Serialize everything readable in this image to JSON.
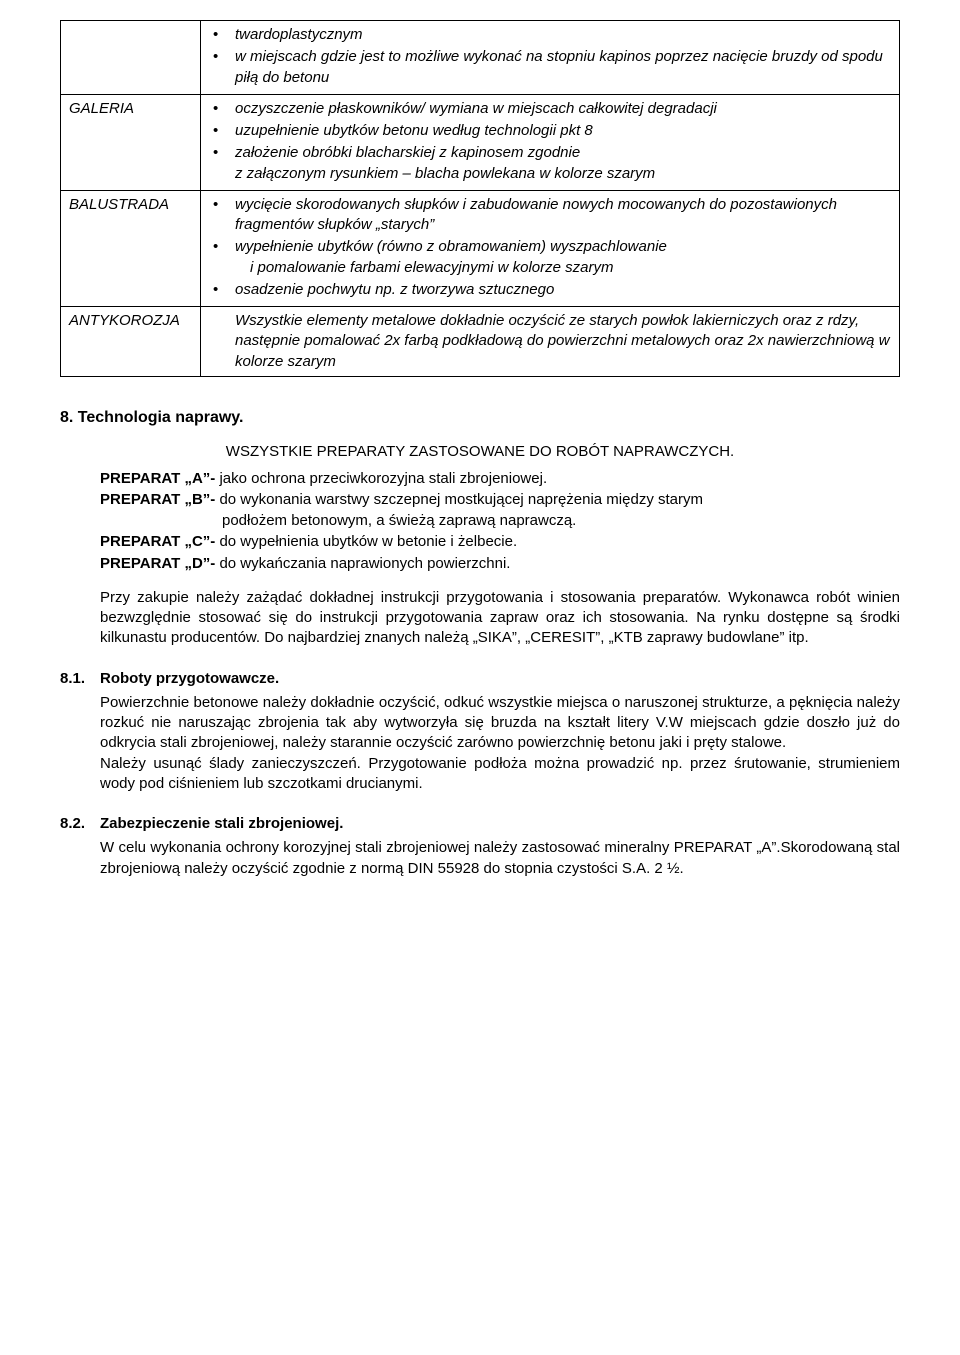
{
  "table": {
    "row0": {
      "bullets": [
        "twardoplastycznym",
        "w miejscach gdzie jest to możliwe wykonać na stopniu kapinos poprzez nacięcie bruzdy od spodu  piłą do betonu"
      ]
    },
    "row1": {
      "label": "GALERIA",
      "bullets": [
        "oczyszczenie płaskowników/ wymiana w miejscach całkowitej degradacji",
        "uzupełnienie ubytków betonu według technologii pkt 8",
        "założenie obróbki blacharskiej z kapinosem zgodnie",
        "z załączonym rysunkiem – blacha powlekana w kolorze szarym"
      ]
    },
    "row2": {
      "label": "BALUSTRADA",
      "bullets": [
        "wycięcie skorodowanych słupków i zabudowanie nowych mocowanych do pozostawionych fragmentów słupków „starych”",
        "wypełnienie ubytków (równo z obramowaniem) wyszpachlowanie",
        " i pomalowanie farbami elewacyjnymi w kolorze szarym",
        "osadzenie pochwytu np.  z tworzywa sztucznego"
      ]
    },
    "row3": {
      "label": "ANTYKOROZJA",
      "text": "Wszystkie elementy metalowe dokładnie oczyścić ze starych powłok lakierniczych oraz z rdzy, następnie pomalować 2x farbą podkładową do powierzchni metalowych oraz 2x nawierzchniową w kolorze szarym"
    }
  },
  "section8": {
    "title": "8.  Technologia naprawy.",
    "center": "WSZYSTKIE PREPARATY ZASTOSOWANE DO ROBÓT NAPRAWCZYCH.",
    "prepA": {
      "bold": "PREPARAT „A”- ",
      "rest": "jako ochrona przeciwkorozyjna stali zbrojeniowej."
    },
    "prepB": {
      "bold": "PREPARAT „B”- ",
      "rest": "do wykonania warstwy szczepnej mostkującej naprężenia między starym",
      "line2": "podłożem betonowym, a świeżą zaprawą naprawczą."
    },
    "prepC": {
      "bold": "PREPARAT „C”- ",
      "rest": "do wypełnienia ubytków w betonie i żelbecie."
    },
    "prepD": {
      "bold": "PREPARAT „D”- ",
      "rest": "do wykańczania naprawionych powierzchni."
    },
    "para": "Przy zakupie należy zażądać dokładnej instrukcji przygotowania i stosowania preparatów. Wykonawca robót winien bezwzględnie stosować się do instrukcji przygotowania zapraw oraz ich stosowania. Na rynku dostępne są środki kilkunastu producentów. Do najbardziej znanych należą „SIKA”, „CERESIT”, „KTB zaprawy budowlane” itp."
  },
  "section81": {
    "num": "8.1.",
    "title": "Roboty przygotowawcze.",
    "text": "Powierzchnie betonowe należy dokładnie oczyścić, odkuć wszystkie miejsca o naruszonej strukturze, a pęknięcia należy rozkuć nie naruszając zbrojenia tak aby wytworzyła się bruzda na kształt litery V.W miejscach gdzie doszło już do odkrycia stali zbrojeniowej, należy starannie oczyścić zarówno powierzchnię betonu jaki i pręty stalowe.\nNależy usunąć ślady zanieczyszczeń. Przygotowanie podłoża można prowadzić np. przez śrutowanie, strumieniem wody pod ciśnieniem lub szczotkami drucianymi."
  },
  "section82": {
    "num": "8.2.",
    "title": "Zabezpieczenie stali zbrojeniowej.",
    "text": "W celu wykonania ochrony korozyjnej stali zbrojeniowej należy zastosować mineralny PREPARAT „A”.Skorodowaną stal zbrojeniową należy oczyścić zgodnie z normą DIN 55928 do stopnia czystości S.A. 2 ½."
  }
}
